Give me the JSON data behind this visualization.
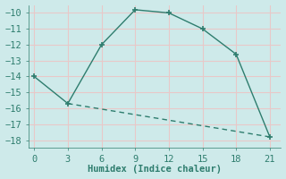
{
  "line1_x": [
    0,
    3,
    6,
    9,
    12,
    15,
    18,
    21
  ],
  "line1_y": [
    -14,
    -15.7,
    -12,
    -9.8,
    -10,
    -11,
    -12.6,
    -17.8
  ],
  "line2_x": [
    3,
    21
  ],
  "line2_y": [
    -15.7,
    -17.8
  ],
  "color": "#2e7d6e",
  "bg_color": "#ceeaea",
  "grid_color": "#b0d8d8",
  "xlabel": "Humidex (Indice chaleur)",
  "ylim": [
    -18.5,
    -9.5
  ],
  "xlim": [
    -0.5,
    22
  ],
  "xticks": [
    0,
    3,
    6,
    9,
    12,
    15,
    18,
    21
  ],
  "yticks": [
    -18,
    -17,
    -16,
    -15,
    -14,
    -13,
    -12,
    -11,
    -10
  ],
  "font_size": 7.5
}
